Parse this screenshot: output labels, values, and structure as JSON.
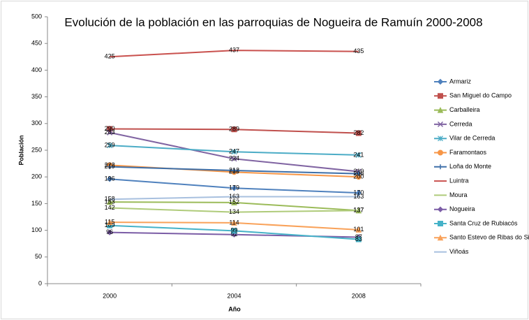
{
  "chart_data": {
    "type": "line",
    "title": "Evolución de la población en las parroquias de Nogueira de Ramuín 2000-2008",
    "x_label": "Año",
    "y_label": "Población",
    "categories": [
      "2000",
      "2004",
      "2008"
    ],
    "ylim": [
      0,
      500
    ],
    "yticks": [
      0,
      50,
      100,
      150,
      200,
      250,
      300,
      350,
      400,
      450,
      500
    ],
    "grid": false,
    "legend": "right",
    "series": [
      {
        "name": "Armariz",
        "color": "#4F81BD",
        "marker": "diamond",
        "values": [
          196,
          179,
          170
        ]
      },
      {
        "name": "San Miguel do Campo",
        "color": "#C0504D",
        "marker": "square",
        "values": [
          290,
          289,
          282
        ]
      },
      {
        "name": "Carballeira",
        "color": "#9BBB59",
        "marker": "triangle",
        "values": [
          153,
          152,
          137
        ]
      },
      {
        "name": "Cerreda",
        "color": "#8064A2",
        "marker": "x",
        "values": [
          283,
          234,
          210
        ]
      },
      {
        "name": "Vilar de Cerreda",
        "color": "#4BACC6",
        "marker": "star",
        "values": [
          259,
          247,
          241
        ]
      },
      {
        "name": "Faramontaos",
        "color": "#F79646",
        "marker": "circle",
        "values": [
          222,
          209,
          200
        ]
      },
      {
        "name": "Loña do Monte",
        "color": "#3E6FA8",
        "marker": "plus",
        "values": [
          219,
          212,
          206
        ]
      },
      {
        "name": "Luintra",
        "color": "#C9514E",
        "marker": "none",
        "values": [
          425,
          437,
          435
        ]
      },
      {
        "name": "Moura",
        "color": "#AFCB7A",
        "marker": "none",
        "values": [
          142,
          134,
          137
        ]
      },
      {
        "name": "Nogueira",
        "color": "#7B5DA6",
        "marker": "diamond",
        "values": [
          96,
          92,
          87
        ]
      },
      {
        "name": "Santa Cruz de Rubiacós",
        "color": "#45B2C8",
        "marker": "square",
        "values": [
          109,
          99,
          83
        ]
      },
      {
        "name": "Santo Estevo de Ribas do Sil",
        "color": "#F9A25A",
        "marker": "triangle",
        "values": [
          115,
          114,
          101
        ]
      },
      {
        "name": "Viñoás",
        "color": "#A8C0DF",
        "marker": "none",
        "values": [
          158,
          163,
          163
        ]
      }
    ]
  }
}
